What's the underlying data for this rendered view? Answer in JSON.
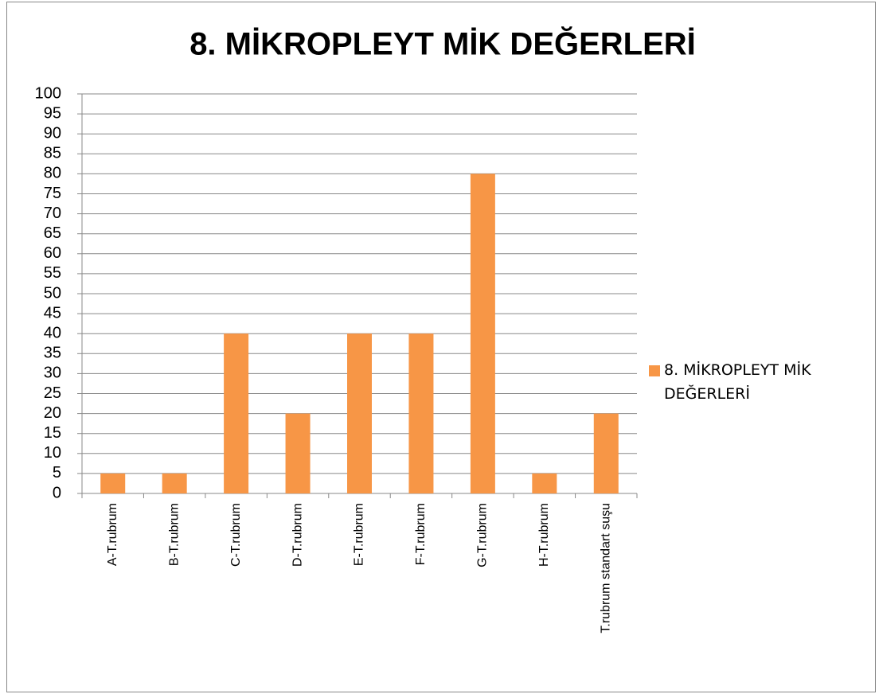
{
  "chart_data": {
    "type": "bar",
    "title": "8. MİKROPLEYT MİK DEĞERLERİ",
    "categories": [
      "A-T.rubrum",
      "B-T.rubrum",
      "C-T.rubrum",
      "D-T.rubrum",
      "E-T.rubrum",
      "F-T.rubrum",
      "G-T.rubrum",
      "H-T.rubrum",
      "T.rubrum standart suşu"
    ],
    "series": [
      {
        "name": "8. MİKROPLEYT MİK DEĞERLERİ",
        "color": "#f79646",
        "values": [
          5,
          5,
          40,
          20,
          40,
          40,
          80,
          5,
          20
        ]
      }
    ],
    "ylim": [
      0,
      100
    ],
    "yticks": [
      0,
      5,
      10,
      15,
      20,
      25,
      30,
      35,
      40,
      45,
      50,
      55,
      60,
      65,
      70,
      75,
      80,
      85,
      90,
      95,
      100
    ],
    "grid": true,
    "legend": "right"
  }
}
